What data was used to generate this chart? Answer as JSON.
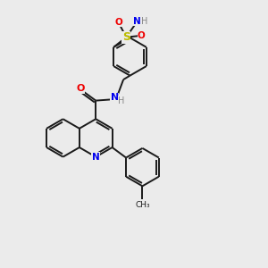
{
  "background_color": "#ebebeb",
  "bond_color": "#1a1a1a",
  "atom_colors": {
    "N": "#0000ee",
    "O": "#ee0000",
    "S": "#bbbb00",
    "H": "#888888",
    "C": "#1a1a1a"
  },
  "figsize": [
    3.0,
    3.0
  ],
  "dpi": 100,
  "lw": 1.4
}
